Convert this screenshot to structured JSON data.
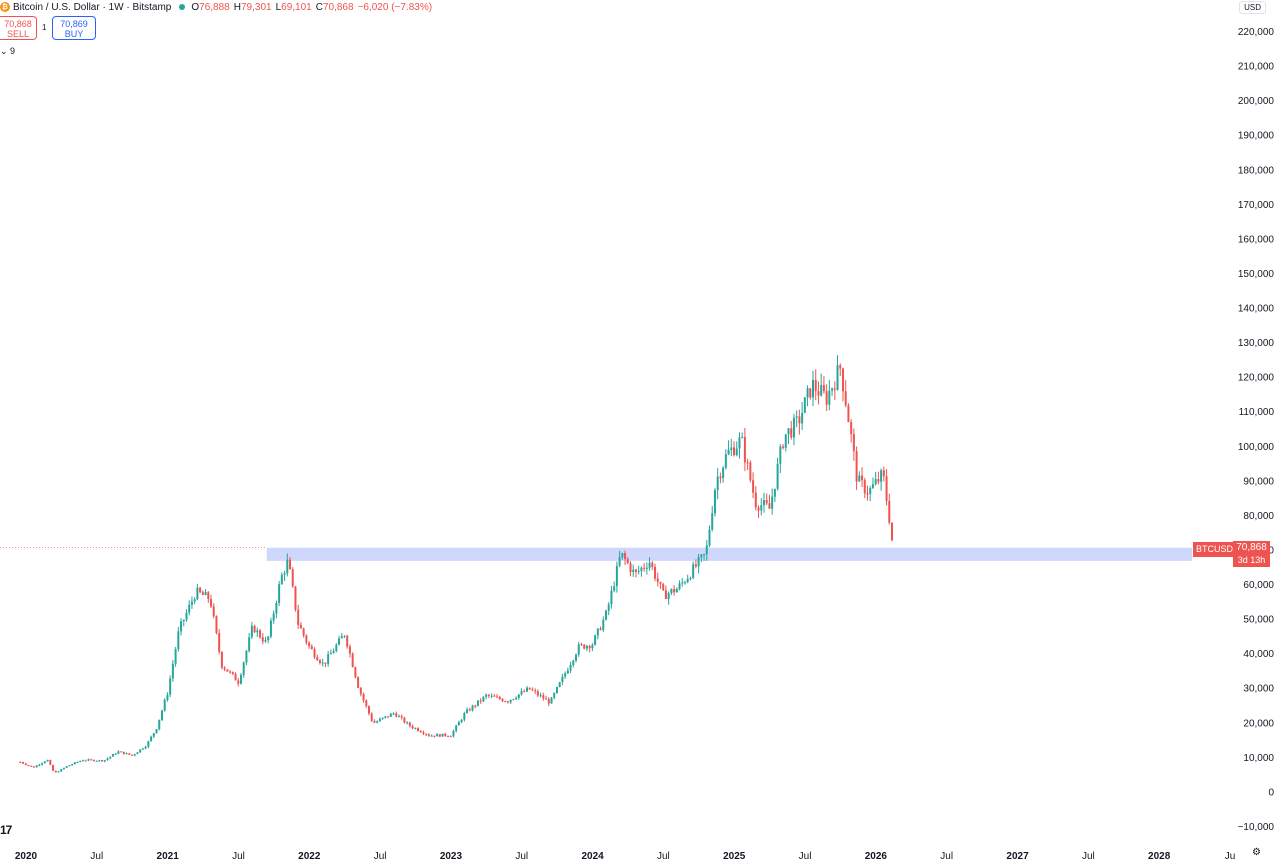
{
  "header": {
    "title": "Bitcoin / U.S. Dollar · 1W · Bitstamp",
    "ohlc": [
      {
        "key": "O",
        "value": "76,888"
      },
      {
        "key": "H",
        "value": "79,301"
      },
      {
        "key": "L",
        "value": "69,101"
      },
      {
        "key": "C",
        "value": "70,868"
      }
    ],
    "change": "−6,020 (−7.83%)"
  },
  "trade": {
    "sell_price": "70,868",
    "sell_label": "SELL",
    "spread": "1",
    "buy_price": "70,869",
    "buy_label": "BUY"
  },
  "indicators_toggle": "⌄ 9",
  "currency_button": "USD",
  "price_tag": {
    "symbol": "BTCUSD",
    "price": "70,868",
    "countdown": "3d 13h"
  },
  "colors": {
    "up": "#26a69a",
    "down": "#ef5350",
    "zone": "#c7d0fb",
    "accent": "#2962ff"
  },
  "chart_data": {
    "type": "candlestick",
    "title": "Bitcoin / U.S. Dollar · 1W · Bitstamp",
    "interval": "1W",
    "ylim": [
      -10000,
      220000
    ],
    "y_ticks": [
      "220,000",
      "210,000",
      "200,000",
      "190,000",
      "180,000",
      "170,000",
      "160,000",
      "150,000",
      "140,000",
      "130,000",
      "120,000",
      "110,000",
      "100,000",
      "90,000",
      "80,000",
      "70,000",
      "60,000",
      "50,000",
      "40,000",
      "30,000",
      "20,000",
      "10,000",
      "0",
      "−10,000"
    ],
    "y_tick_values": [
      220000,
      210000,
      200000,
      190000,
      180000,
      170000,
      160000,
      150000,
      140000,
      130000,
      120000,
      110000,
      100000,
      90000,
      80000,
      70000,
      60000,
      50000,
      40000,
      30000,
      20000,
      10000,
      0,
      -10000
    ],
    "x_ticks": [
      "2020",
      "Jul",
      "2021",
      "Jul",
      "2022",
      "Jul",
      "2023",
      "Jul",
      "2024",
      "Jul",
      "2025",
      "Jul",
      "2026",
      "Jul",
      "2027",
      "Jul",
      "2028",
      "Ju"
    ],
    "x_tick_years": [
      2020,
      2020.5,
      2021,
      2021.5,
      2022,
      2022.5,
      2023,
      2023.5,
      2024,
      2024.5,
      2025,
      2025.5,
      2026,
      2026.5,
      2027,
      2027.5,
      2028,
      2028.5
    ],
    "x_tick_bold": [
      true,
      false,
      true,
      false,
      true,
      false,
      true,
      false,
      true,
      false,
      true,
      false,
      true,
      false,
      true,
      false,
      true,
      false
    ],
    "support_zone": {
      "from_year": 2021.7,
      "low": 67000,
      "high": 70800
    },
    "last_price": 70868,
    "price_path": [
      [
        2019.96,
        8800
      ],
      [
        2020.05,
        7200
      ],
      [
        2020.15,
        9500
      ],
      [
        2020.2,
        5500
      ],
      [
        2020.3,
        7800
      ],
      [
        2020.4,
        9400
      ],
      [
        2020.55,
        9200
      ],
      [
        2020.65,
        11800
      ],
      [
        2020.75,
        10700
      ],
      [
        2020.85,
        13700
      ],
      [
        2020.92,
        18500
      ],
      [
        2021.0,
        29000
      ],
      [
        2021.08,
        47000
      ],
      [
        2021.2,
        58000
      ],
      [
        2021.3,
        56000
      ],
      [
        2021.38,
        37000
      ],
      [
        2021.5,
        32000
      ],
      [
        2021.6,
        48000
      ],
      [
        2021.7,
        43000
      ],
      [
        2021.8,
        62000
      ],
      [
        2021.85,
        67000
      ],
      [
        2021.92,
        49000
      ],
      [
        2022.0,
        42000
      ],
      [
        2022.1,
        37000
      ],
      [
        2022.25,
        46000
      ],
      [
        2022.35,
        30000
      ],
      [
        2022.45,
        20000
      ],
      [
        2022.6,
        23000
      ],
      [
        2022.7,
        19500
      ],
      [
        2022.85,
        16500
      ],
      [
        2023.0,
        16600
      ],
      [
        2023.1,
        23000
      ],
      [
        2023.25,
        28000
      ],
      [
        2023.4,
        26500
      ],
      [
        2023.55,
        30000
      ],
      [
        2023.7,
        26000
      ],
      [
        2023.8,
        34000
      ],
      [
        2023.9,
        42000
      ],
      [
        2024.0,
        43000
      ],
      [
        2024.1,
        52000
      ],
      [
        2024.2,
        69000
      ],
      [
        2024.3,
        63000
      ],
      [
        2024.4,
        67000
      ],
      [
        2024.5,
        57000
      ],
      [
        2024.6,
        59000
      ],
      [
        2024.7,
        64000
      ],
      [
        2024.8,
        69000
      ],
      [
        2024.87,
        90000
      ],
      [
        2024.95,
        98000
      ],
      [
        2025.05,
        102000
      ],
      [
        2025.15,
        84000
      ],
      [
        2025.25,
        82000
      ],
      [
        2025.35,
        103000
      ],
      [
        2025.45,
        107000
      ],
      [
        2025.55,
        118000
      ],
      [
        2025.65,
        114000
      ],
      [
        2025.75,
        123000
      ],
      [
        2025.8,
        110000
      ],
      [
        2025.87,
        90000
      ],
      [
        2025.95,
        87000
      ],
      [
        2026.05,
        92000
      ],
      [
        2026.1,
        78000
      ],
      [
        2026.12,
        70868
      ]
    ]
  }
}
